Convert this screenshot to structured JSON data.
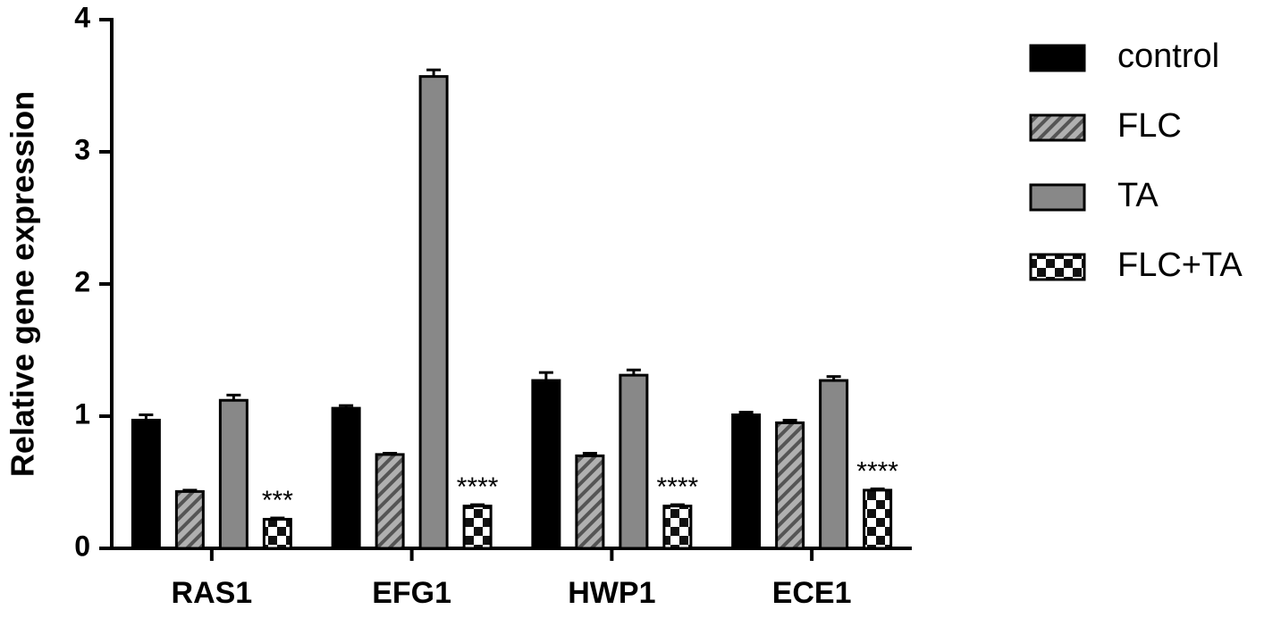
{
  "chart_data": {
    "type": "bar",
    "y_label": "Relative gene expression",
    "categories": [
      "RAS1",
      "EFG1",
      "HWP1",
      "ECE1"
    ],
    "ylim": [
      0,
      4
    ],
    "yticks": [
      0,
      1,
      2,
      3,
      4
    ],
    "series": [
      {
        "name": "control",
        "color": "#000000",
        "pattern": "solid",
        "values": [
          0.97,
          1.06,
          1.27,
          1.01
        ],
        "errors": [
          0.04,
          0.02,
          0.06,
          0.02
        ]
      },
      {
        "name": "FLC",
        "color": "#9a9a9a",
        "pattern": "hatch",
        "values": [
          0.43,
          0.71,
          0.7,
          0.95
        ],
        "errors": [
          0.01,
          0.01,
          0.02,
          0.02
        ]
      },
      {
        "name": "TA",
        "color": "#888888",
        "pattern": "solid",
        "values": [
          1.12,
          3.57,
          1.31,
          1.27
        ],
        "errors": [
          0.04,
          0.05,
          0.04,
          0.03
        ]
      },
      {
        "name": "FLC+TA",
        "color": "#000000",
        "pattern": "checker",
        "values": [
          0.22,
          0.32,
          0.32,
          0.44
        ],
        "errors": [
          0.01,
          0.01,
          0.01,
          0.01
        ],
        "annotations": [
          "***",
          "****",
          "****",
          "****"
        ]
      }
    ]
  }
}
